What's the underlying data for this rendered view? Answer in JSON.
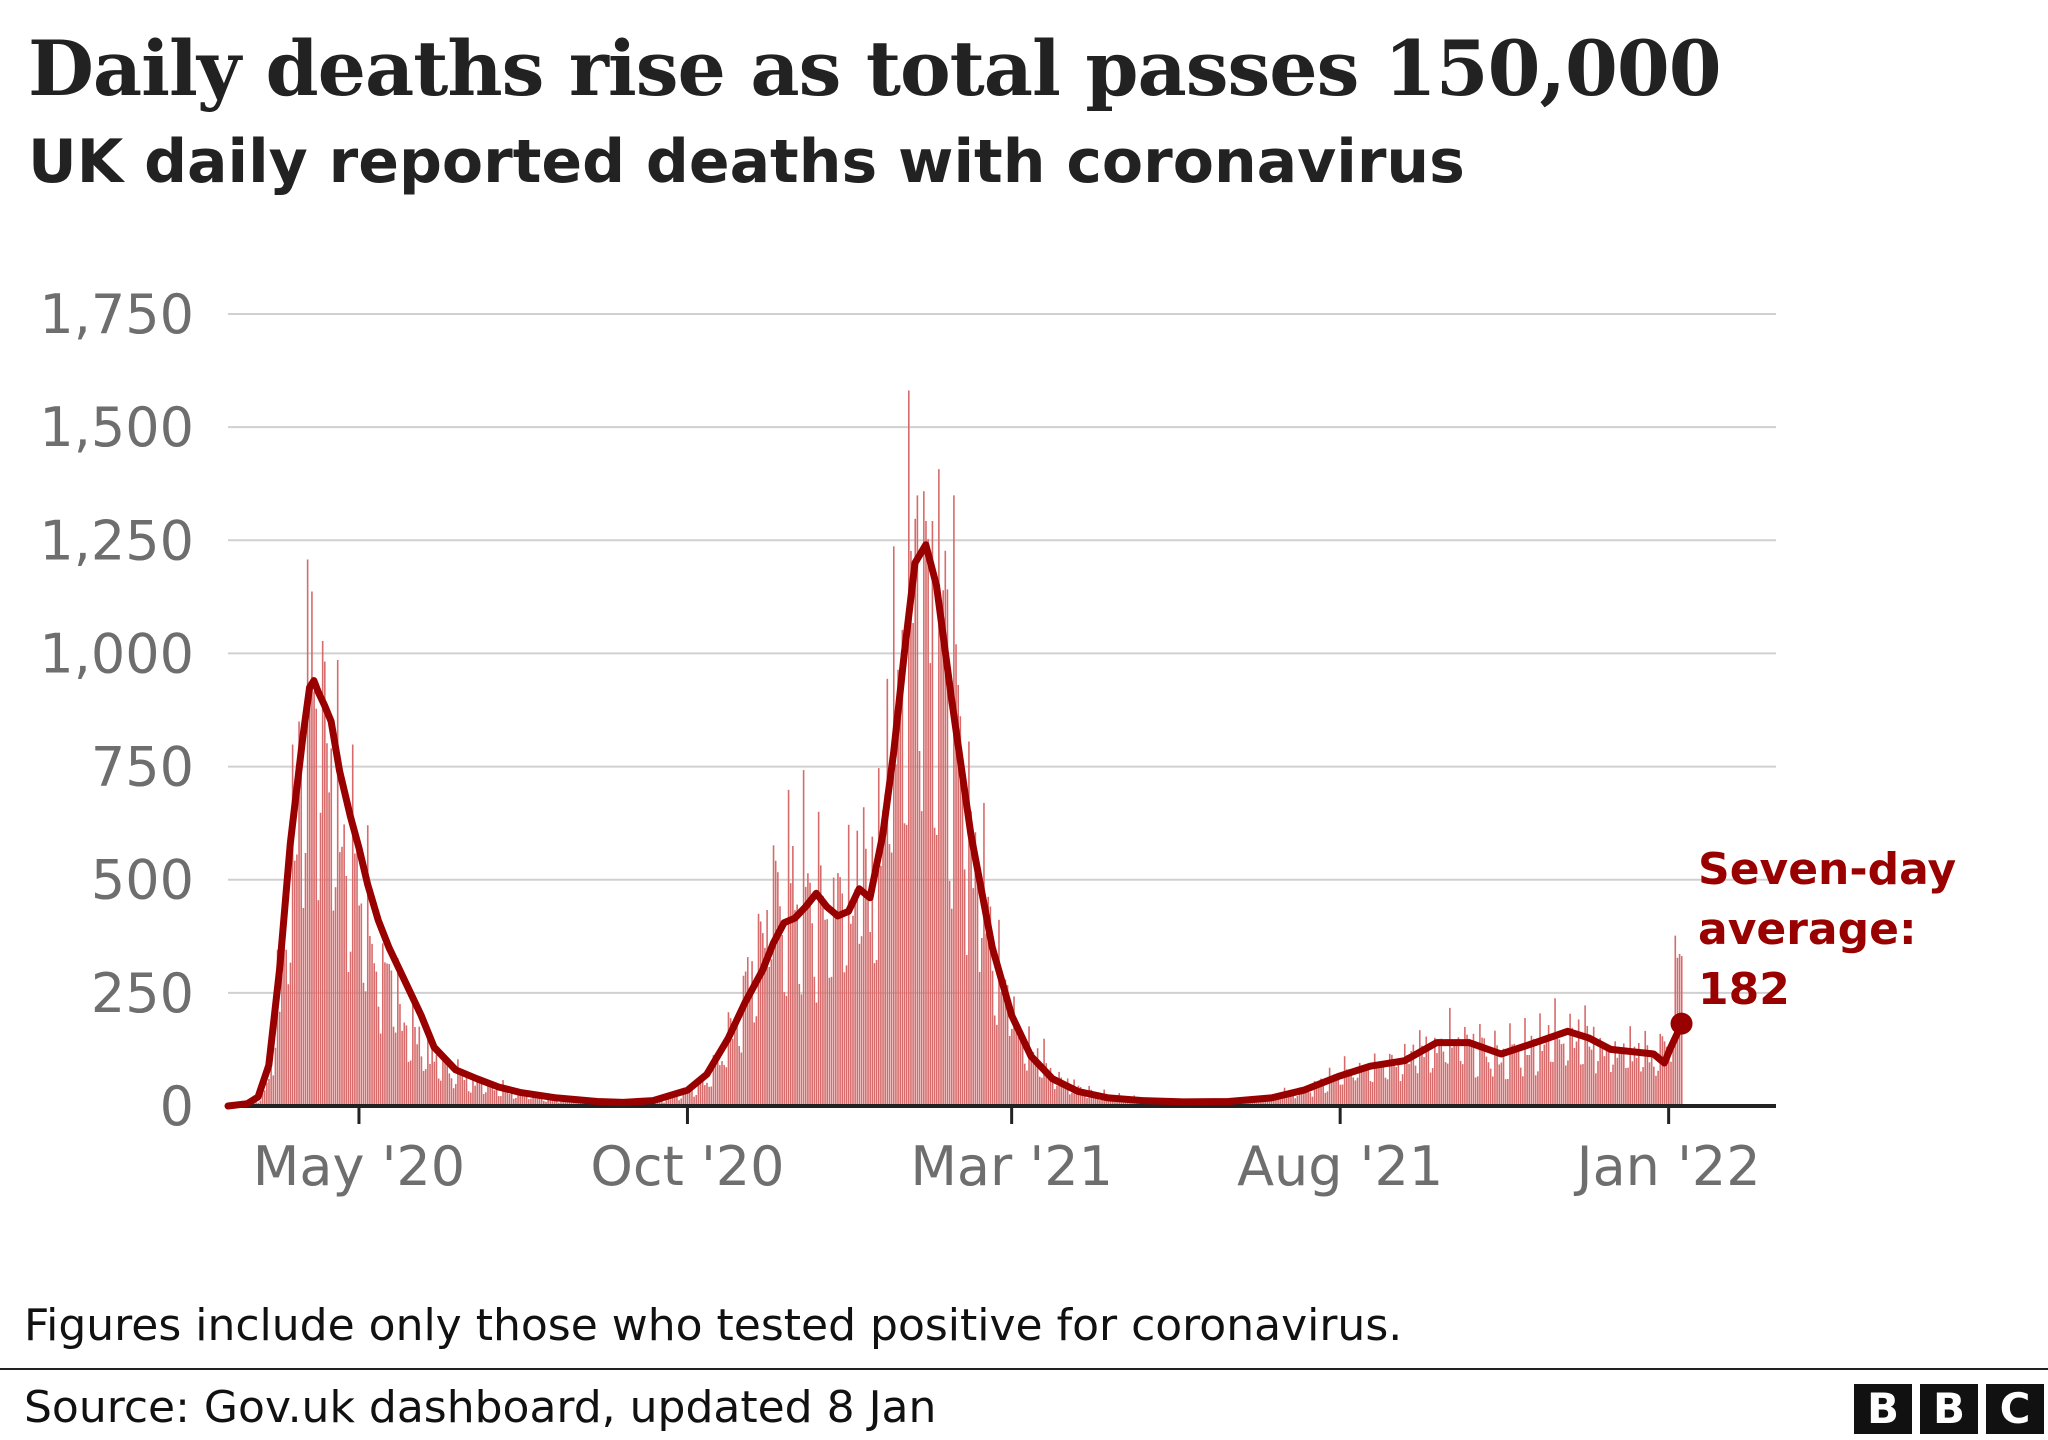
{
  "header": {
    "title": "Daily deaths rise as total passes 150,000",
    "subtitle": "UK daily reported deaths with coronavirus"
  },
  "footer": {
    "note": "Figures include only those who tested positive for coronavirus.",
    "source": "Source: Gov.uk dashboard, updated 8 Jan",
    "logo_letters": [
      "B",
      "B",
      "C"
    ]
  },
  "annotation": {
    "lines": [
      "Seven-day",
      "average:",
      "182"
    ]
  },
  "colors": {
    "bar": "#d76b6b",
    "line": "#990000",
    "grid": "#d0d0d0",
    "axis": "#222222",
    "tick_text": "#6e6e6e"
  },
  "chart_data": {
    "type": "bar",
    "title": "Daily deaths rise as total passes 150,000",
    "subtitle": "UK daily reported deaths with coronavirus",
    "xlabel": "",
    "ylabel": "",
    "x_range": [
      "2020-03-01",
      "2022-02-20"
    ],
    "ylim": [
      0,
      1750
    ],
    "yticks": [
      0,
      250,
      500,
      750,
      1000,
      1250,
      1500,
      1750
    ],
    "ytick_labels": [
      "0",
      "250",
      "500",
      "750",
      "1,000",
      "1,250",
      "1,500",
      "1,750"
    ],
    "xticks": [
      {
        "date": "2020-05-01",
        "label": "May '20"
      },
      {
        "date": "2020-10-01",
        "label": "Oct '20"
      },
      {
        "date": "2021-03-01",
        "label": "Mar '21"
      },
      {
        "date": "2021-08-01",
        "label": "Aug '21"
      },
      {
        "date": "2022-01-01",
        "label": "Jan '22"
      }
    ],
    "grid": "horizontal",
    "series": [
      {
        "type": "bar",
        "values_described": "daily reported deaths",
        "points": [
          [
            "2020-03-01",
            0
          ],
          [
            "2020-03-10",
            2
          ],
          [
            "2020-03-15",
            12
          ],
          [
            "2020-03-20",
            60
          ],
          [
            "2020-03-25",
            250
          ],
          [
            "2020-03-30",
            500
          ],
          [
            "2020-04-05",
            800
          ],
          [
            "2020-04-08",
            1050
          ],
          [
            "2020-04-10",
            980
          ],
          [
            "2020-04-12",
            900
          ],
          [
            "2020-04-15",
            840
          ],
          [
            "2020-04-20",
            700
          ],
          [
            "2020-04-25",
            620
          ],
          [
            "2020-04-30",
            500
          ],
          [
            "2020-05-05",
            400
          ],
          [
            "2020-05-10",
            320
          ],
          [
            "2020-05-15",
            260
          ],
          [
            "2020-05-20",
            220
          ],
          [
            "2020-05-25",
            170
          ],
          [
            "2020-05-30",
            140
          ],
          [
            "2020-06-05",
            100
          ],
          [
            "2020-06-15",
            72
          ],
          [
            "2020-06-25",
            55
          ],
          [
            "2020-07-05",
            40
          ],
          [
            "2020-07-15",
            28
          ],
          [
            "2020-08-01",
            15
          ],
          [
            "2020-08-20",
            10
          ],
          [
            "2020-09-01",
            8
          ],
          [
            "2020-09-15",
            10
          ],
          [
            "2020-10-01",
            28
          ],
          [
            "2020-10-10",
            60
          ],
          [
            "2020-10-20",
            150
          ],
          [
            "2020-11-01",
            330
          ],
          [
            "2020-11-10",
            450
          ],
          [
            "2020-11-20",
            480
          ],
          [
            "2020-11-30",
            440
          ],
          [
            "2020-12-10",
            450
          ],
          [
            "2020-12-20",
            520
          ],
          [
            "2020-12-25",
            470
          ],
          [
            "2020-12-31",
            700
          ],
          [
            "2021-01-10",
            1100
          ],
          [
            "2021-01-15",
            1250
          ],
          [
            "2021-01-20",
            1300
          ],
          [
            "2021-01-25",
            1180
          ],
          [
            "2021-02-01",
            900
          ],
          [
            "2021-02-10",
            620
          ],
          [
            "2021-02-20",
            380
          ],
          [
            "2021-03-01",
            230
          ],
          [
            "2021-03-10",
            130
          ],
          [
            "2021-03-20",
            70
          ],
          [
            "2021-04-01",
            40
          ],
          [
            "2021-04-15",
            22
          ],
          [
            "2021-05-01",
            12
          ],
          [
            "2021-05-20",
            9
          ],
          [
            "2021-06-10",
            10
          ],
          [
            "2021-06-30",
            18
          ],
          [
            "2021-07-15",
            35
          ],
          [
            "2021-07-31",
            65
          ],
          [
            "2021-08-15",
            95
          ],
          [
            "2021-08-31",
            110
          ],
          [
            "2021-09-15",
            140
          ],
          [
            "2021-09-30",
            135
          ],
          [
            "2021-10-15",
            110
          ],
          [
            "2021-10-31",
            140
          ],
          [
            "2021-11-15",
            170
          ],
          [
            "2021-11-25",
            150
          ],
          [
            "2021-12-05",
            125
          ],
          [
            "2021-12-15",
            120
          ],
          [
            "2021-12-25",
            110
          ],
          [
            "2022-01-01",
            150
          ],
          [
            "2022-01-05",
            300
          ],
          [
            "2022-01-07",
            300
          ]
        ]
      },
      {
        "type": "line",
        "name": "Seven-day average",
        "points": [
          [
            "2020-03-01",
            0
          ],
          [
            "2020-03-10",
            5
          ],
          [
            "2020-03-15",
            20
          ],
          [
            "2020-03-20",
            90
          ],
          [
            "2020-03-25",
            300
          ],
          [
            "2020-03-30",
            580
          ],
          [
            "2020-04-05",
            820
          ],
          [
            "2020-04-08",
            925
          ],
          [
            "2020-04-10",
            940
          ],
          [
            "2020-04-12",
            915
          ],
          [
            "2020-04-15",
            885
          ],
          [
            "2020-04-18",
            850
          ],
          [
            "2020-04-22",
            740
          ],
          [
            "2020-04-27",
            640
          ],
          [
            "2020-05-01",
            570
          ],
          [
            "2020-05-05",
            490
          ],
          [
            "2020-05-10",
            410
          ],
          [
            "2020-05-15",
            350
          ],
          [
            "2020-05-20",
            300
          ],
          [
            "2020-05-25",
            250
          ],
          [
            "2020-05-30",
            200
          ],
          [
            "2020-06-05",
            130
          ],
          [
            "2020-06-15",
            80
          ],
          [
            "2020-06-25",
            60
          ],
          [
            "2020-07-05",
            42
          ],
          [
            "2020-07-15",
            30
          ],
          [
            "2020-08-01",
            18
          ],
          [
            "2020-08-20",
            10
          ],
          [
            "2020-09-01",
            8
          ],
          [
            "2020-09-15",
            12
          ],
          [
            "2020-10-01",
            35
          ],
          [
            "2020-10-10",
            70
          ],
          [
            "2020-10-20",
            150
          ],
          [
            "2020-10-28",
            230
          ],
          [
            "2020-11-05",
            300
          ],
          [
            "2020-11-10",
            360
          ],
          [
            "2020-11-15",
            405
          ],
          [
            "2020-11-20",
            415
          ],
          [
            "2020-11-25",
            440
          ],
          [
            "2020-11-30",
            470
          ],
          [
            "2020-12-05",
            440
          ],
          [
            "2020-12-10",
            420
          ],
          [
            "2020-12-15",
            430
          ],
          [
            "2020-12-20",
            480
          ],
          [
            "2020-12-25",
            460
          ],
          [
            "2020-12-31",
            600
          ],
          [
            "2021-01-05",
            780
          ],
          [
            "2021-01-10",
            1000
          ],
          [
            "2021-01-15",
            1200
          ],
          [
            "2021-01-20",
            1240
          ],
          [
            "2021-01-25",
            1150
          ],
          [
            "2021-02-01",
            900
          ],
          [
            "2021-02-10",
            600
          ],
          [
            "2021-02-20",
            350
          ],
          [
            "2021-03-01",
            200
          ],
          [
            "2021-03-10",
            110
          ],
          [
            "2021-03-20",
            60
          ],
          [
            "2021-04-01",
            32
          ],
          [
            "2021-04-15",
            18
          ],
          [
            "2021-05-01",
            12
          ],
          [
            "2021-05-20",
            9
          ],
          [
            "2021-06-10",
            10
          ],
          [
            "2021-06-30",
            18
          ],
          [
            "2021-07-15",
            35
          ],
          [
            "2021-07-31",
            65
          ],
          [
            "2021-08-15",
            88
          ],
          [
            "2021-08-31",
            100
          ],
          [
            "2021-09-15",
            140
          ],
          [
            "2021-09-30",
            140
          ],
          [
            "2021-10-15",
            115
          ],
          [
            "2021-10-31",
            140
          ],
          [
            "2021-11-15",
            165
          ],
          [
            "2021-11-25",
            150
          ],
          [
            "2021-12-05",
            125
          ],
          [
            "2021-12-15",
            120
          ],
          [
            "2021-12-25",
            115
          ],
          [
            "2021-12-30",
            95
          ],
          [
            "2022-01-02",
            130
          ],
          [
            "2022-01-05",
            160
          ],
          [
            "2022-01-07",
            182
          ]
        ]
      }
    ],
    "annotation": {
      "label": "Seven-day average:",
      "value": 182,
      "date": "2022-01-07"
    }
  }
}
